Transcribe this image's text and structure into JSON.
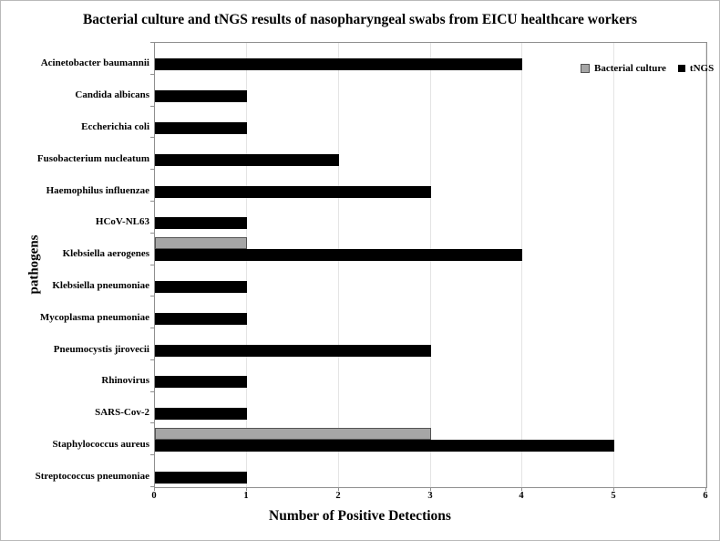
{
  "chart_data": {
    "type": "bar",
    "orientation": "horizontal",
    "title": "Bacterial culture and tNGS results of nasopharyngeal swabs from EICU healthcare workers",
    "xlabel": "Number of Positive Detections",
    "ylabel": "pathogens",
    "xlim": [
      0,
      6
    ],
    "xticks": [
      "0",
      "1",
      "2",
      "3",
      "4",
      "5",
      "6"
    ],
    "grid": true,
    "legend_position": "top-right-inside",
    "categories": [
      "Acinetobacter baumannii",
      "Candida albicans",
      "Eccherichia coli",
      "Fusobacterium nucleatum",
      "Haemophilus influenzae",
      "HCoV-NL63",
      "Klebsiella aerogenes",
      "Klebsiella pneumoniae",
      "Mycoplasma pneumoniae",
      "Pneumocystis jirovecii",
      "Rhinovirus",
      "SARS-Cov-2",
      "Staphylococcus aureus",
      "Streptococcus pneumoniae"
    ],
    "series": [
      {
        "name": "Bacterial culture",
        "color": "#a6a6a6",
        "border_color": "#545454",
        "values": [
          0,
          0,
          0,
          0,
          0,
          0,
          1,
          0,
          0,
          0,
          0,
          0,
          3,
          0
        ]
      },
      {
        "name": "tNGS",
        "color": "#000000",
        "border_color": "#000000",
        "values": [
          4,
          1,
          1,
          2,
          3,
          1,
          4,
          1,
          1,
          3,
          1,
          1,
          5,
          1
        ]
      }
    ],
    "colors": {
      "gridline": "#e4e4e4",
      "axis_frame": "#8f8f8f",
      "text": "#000000",
      "background": "#ffffff"
    }
  }
}
